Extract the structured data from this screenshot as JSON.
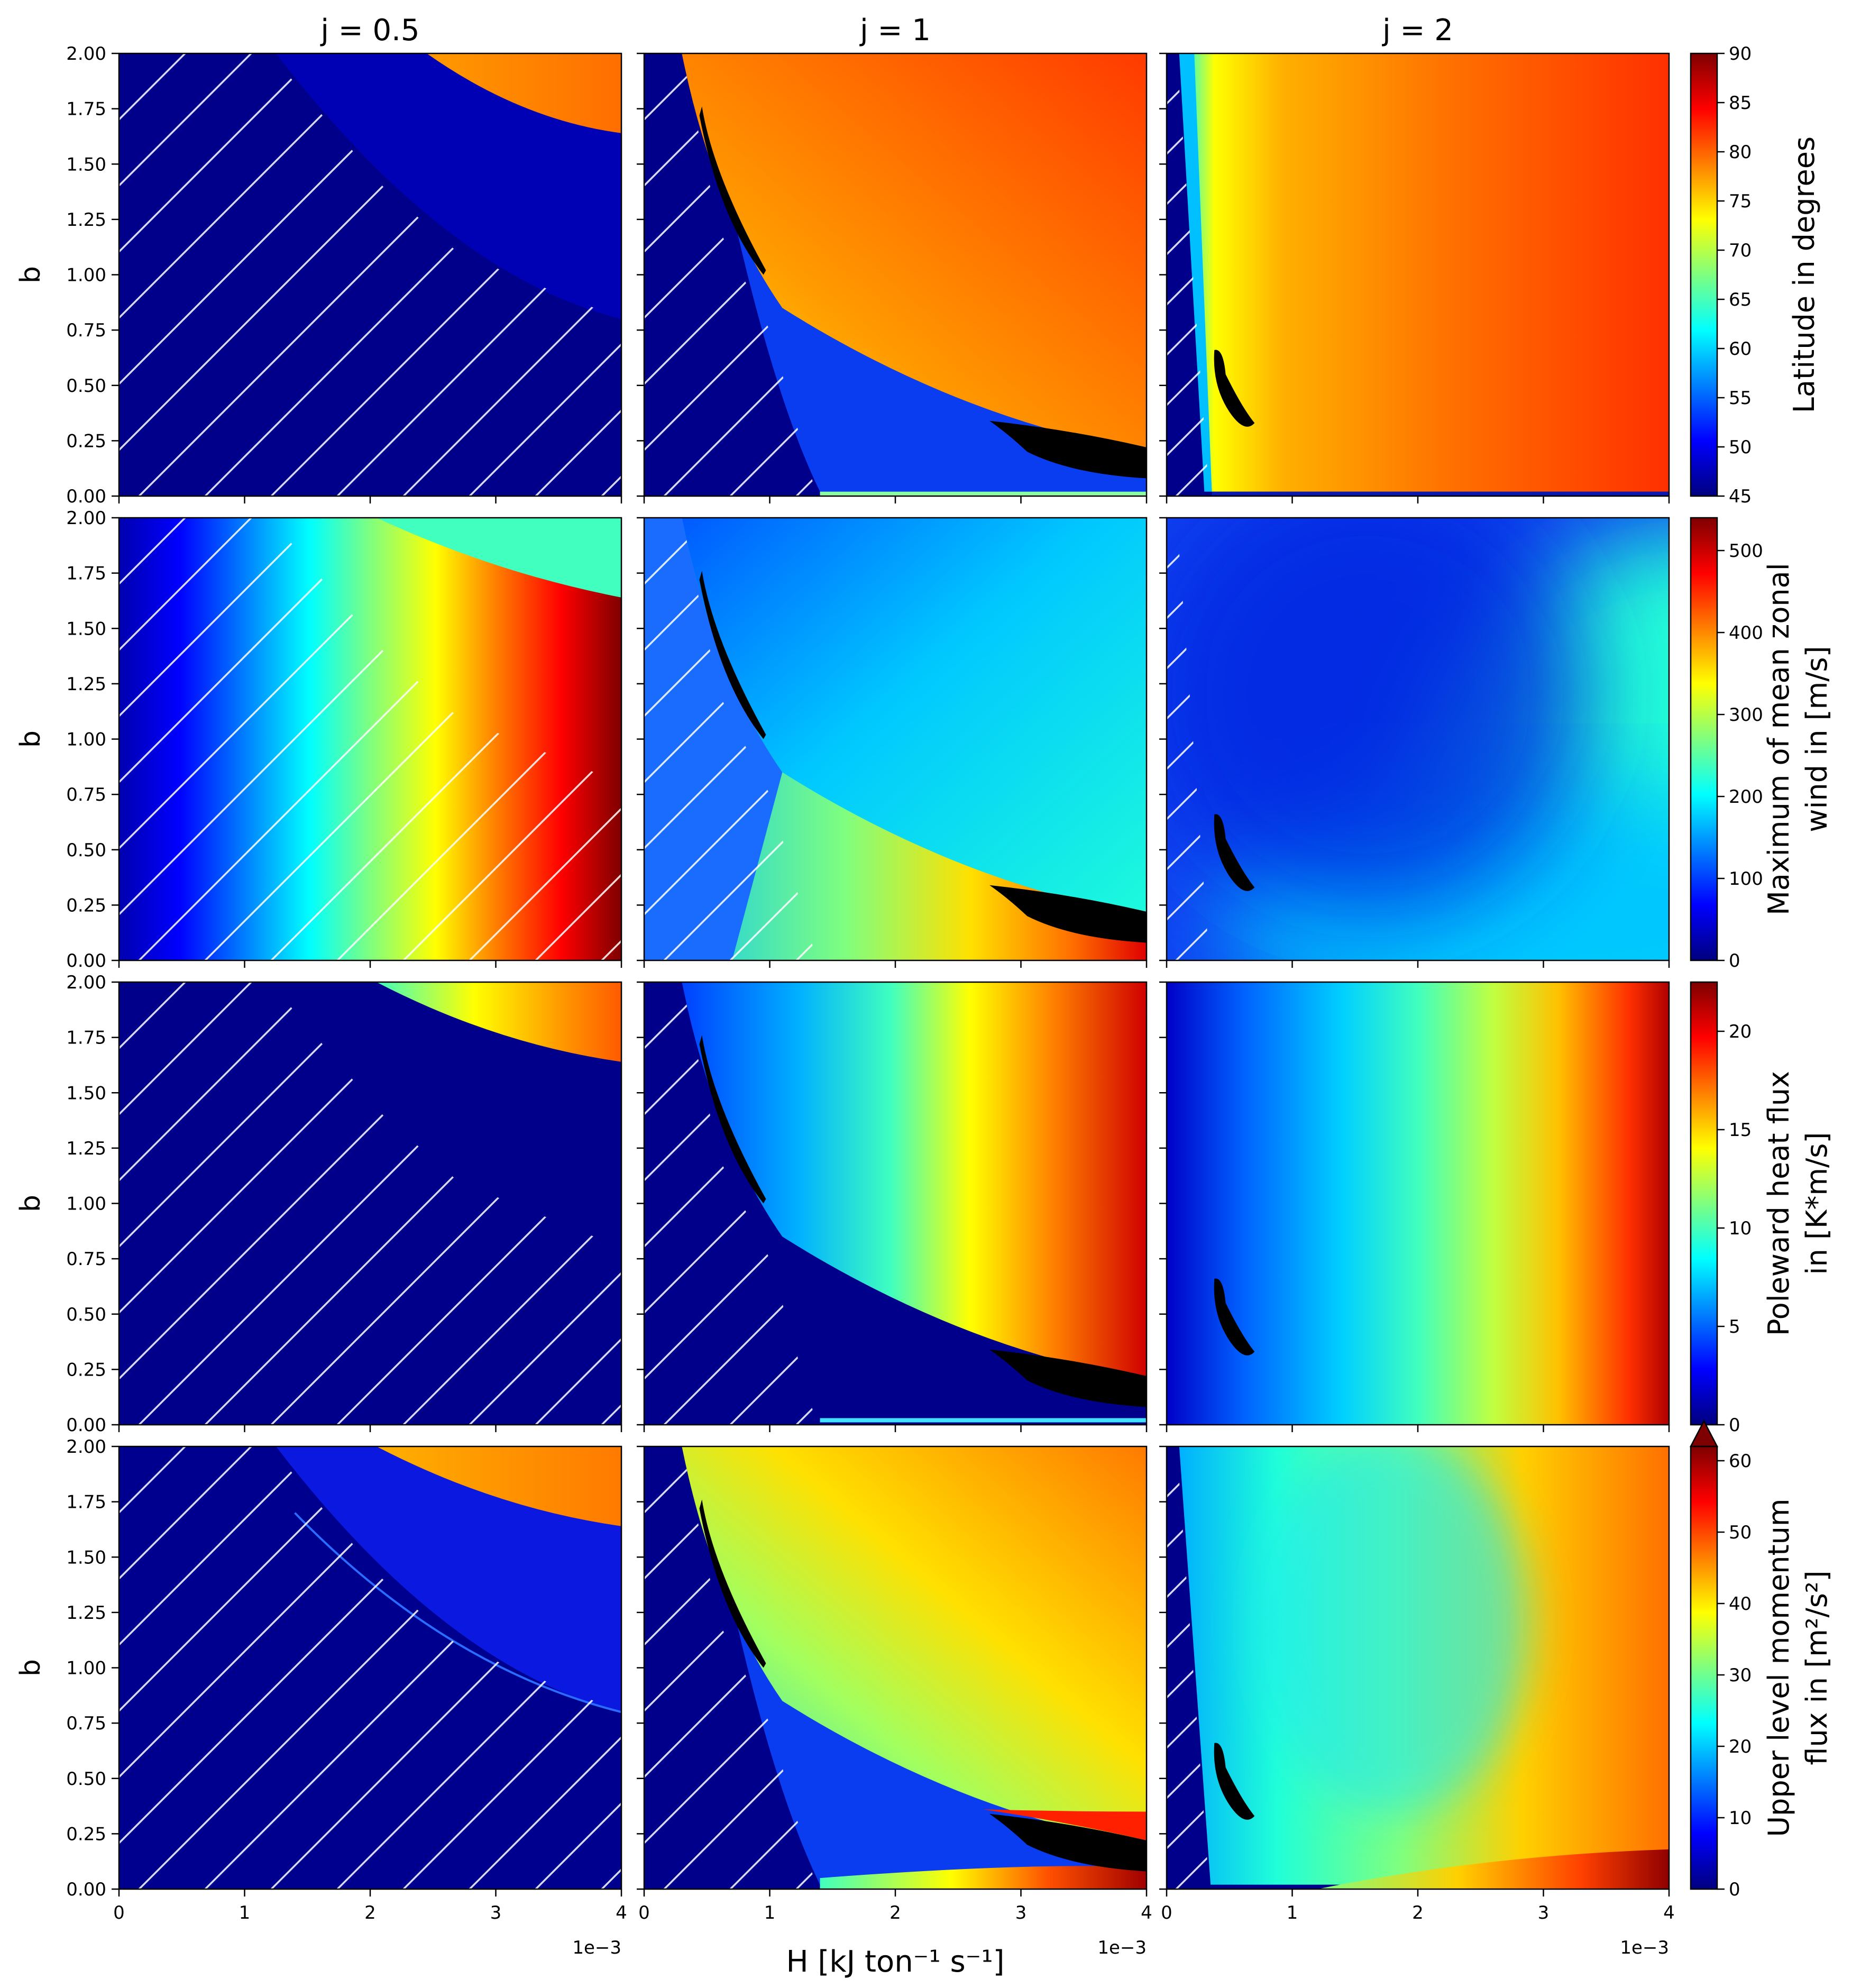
{
  "chart_data": {
    "type": "heatmap",
    "layout": "4 rows x 3 columns of panels, one colorbar per row",
    "columns": [
      {
        "title": "j = 0.5"
      },
      {
        "title": "j = 1"
      },
      {
        "title": "j = 2"
      }
    ],
    "xlabel": "H [kJ ton⁻¹ s⁻¹]",
    "x_offset_label": "1e−3",
    "xlim": [
      0,
      4
    ],
    "xticks": [
      "0",
      "1",
      "2",
      "3",
      "4"
    ],
    "ylabel": "b",
    "ylim": [
      0,
      2
    ],
    "yticks": [
      "0.00",
      "0.25",
      "0.50",
      "0.75",
      "1.00",
      "1.25",
      "1.50",
      "1.75",
      "2.00"
    ],
    "colormap": "jet",
    "colormap_stops": [
      "#00007f",
      "#0000ff",
      "#007fff",
      "#00ffff",
      "#7fff7f",
      "#ffff00",
      "#ff7f00",
      "#ff0000",
      "#7f0000"
    ],
    "rows": [
      {
        "quantity": "Latitude in degrees",
        "colorbar_label": [
          "Latitude in degrees"
        ],
        "vmin": 45,
        "vmax": 90,
        "colorbar_ticks": [
          "45",
          "50",
          "55",
          "60",
          "65",
          "70",
          "75",
          "80",
          "85",
          "90"
        ],
        "extend_max": false
      },
      {
        "quantity": "Maximum of mean zonal wind",
        "colorbar_label": [
          "Maximum of mean zonal",
          "wind in [m/s]"
        ],
        "vmin": 0,
        "vmax": 540,
        "colorbar_ticks": [
          "0",
          "100",
          "200",
          "300",
          "400",
          "500"
        ],
        "extend_max": false
      },
      {
        "quantity": "Poleward heat flux",
        "colorbar_label": [
          "Poleward heat flux",
          "in [K*m/s]"
        ],
        "vmin": 0,
        "vmax": 22.5,
        "colorbar_ticks": [
          "0",
          "5",
          "10",
          "15",
          "20"
        ],
        "extend_max": false
      },
      {
        "quantity": "Upper level momentum flux",
        "colorbar_label": [
          "Upper level momentum",
          "flux in [m²/s²]"
        ],
        "vmin": 0,
        "vmax": 62,
        "colorbar_ticks": [
          "0",
          "10",
          "20",
          "30",
          "40",
          "50",
          "60"
        ],
        "extend_max": true
      }
    ],
    "hatching": "diagonal white lines mark the excluded low-H / low-b region",
    "masked_regions": "black areas mark missing solutions",
    "grid": false
  }
}
